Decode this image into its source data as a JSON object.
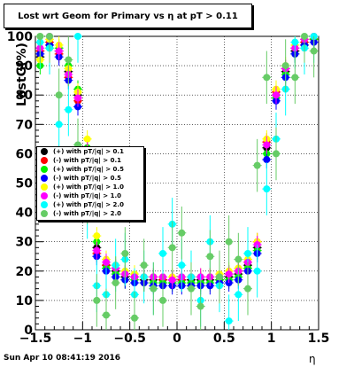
{
  "title": "Lost wrt Geom for Primary vs   η at pT > 0.11",
  "timestamp": "Sun Apr 10 08:41:19 2016",
  "chart_data": {
    "type": "scatter",
    "title": "Lost wrt Geom for Primary vs   η at pT > 0.11",
    "xlabel": "η",
    "ylabel": "LostG(%)",
    "xlim": [
      -1.5,
      1.5
    ],
    "ylim": [
      0,
      100
    ],
    "xticks": [
      -1.5,
      -1,
      -0.5,
      0,
      0.5,
      1,
      1.5
    ],
    "xtick_labels": [
      "−1.5",
      "−1",
      "−0.5",
      "0",
      "0.5",
      "1",
      "1.5"
    ],
    "yticks": [
      0,
      10,
      20,
      30,
      40,
      50,
      60,
      70,
      80,
      90,
      100
    ],
    "ytick_labels": [
      "0",
      "10",
      "20",
      "30",
      "40",
      "50",
      "60",
      "70",
      "80",
      "90",
      "100"
    ],
    "grid": true,
    "legend_position": "middle-left",
    "series": [
      {
        "name": "(+) with pT/|q| > 0.1",
        "color": "#000000",
        "x": [
          -1.45,
          -1.35,
          -1.25,
          -1.15,
          -1.05,
          -0.95,
          -0.85,
          -0.75,
          -0.65,
          -0.55,
          -0.45,
          -0.35,
          -0.25,
          -0.15,
          -0.05,
          0.05,
          0.15,
          0.25,
          0.35,
          0.45,
          0.55,
          0.65,
          0.75,
          0.85,
          0.95,
          1.05,
          1.15,
          1.25,
          1.35,
          1.45
        ],
        "y": [
          93,
          97,
          95,
          88,
          80,
          62,
          28,
          22,
          20,
          18,
          18,
          17,
          17,
          17,
          17,
          17,
          17,
          17,
          17,
          17,
          18,
          19,
          22,
          28,
          62,
          80,
          88,
          95,
          97,
          99
        ]
      },
      {
        "name": "(-) with pT/|q| > 0.1",
        "color": "#ff0000",
        "x": [
          -1.45,
          -1.35,
          -1.25,
          -1.15,
          -1.05,
          -0.95,
          -0.85,
          -0.75,
          -0.65,
          -0.55,
          -0.45,
          -0.35,
          -0.25,
          -0.15,
          -0.05,
          0.05,
          0.15,
          0.25,
          0.35,
          0.45,
          0.55,
          0.65,
          0.75,
          0.85,
          0.95,
          1.05,
          1.15,
          1.25,
          1.35,
          1.45
        ],
        "y": [
          95,
          98,
          94,
          86,
          78,
          60,
          26,
          22,
          21,
          19,
          18,
          18,
          18,
          17,
          17,
          17,
          18,
          18,
          18,
          18,
          19,
          20,
          23,
          30,
          64,
          81,
          89,
          96,
          98,
          99
        ]
      },
      {
        "name": "(+) with pT/|q| > 0.5",
        "color": "#00ee00",
        "x": [
          -1.45,
          -1.35,
          -1.25,
          -1.15,
          -1.05,
          -0.95,
          -0.85,
          -0.75,
          -0.65,
          -0.55,
          -0.45,
          -0.35,
          -0.25,
          -0.15,
          -0.05,
          0.05,
          0.15,
          0.25,
          0.35,
          0.45,
          0.55,
          0.65,
          0.75,
          0.85,
          0.95,
          1.05,
          1.15,
          1.25,
          1.35,
          1.45
        ],
        "y": [
          90,
          96,
          96,
          90,
          82,
          62,
          30,
          21,
          19,
          17,
          17,
          16,
          16,
          16,
          16,
          16,
          16,
          16,
          16,
          17,
          17,
          18,
          21,
          27,
          60,
          79,
          87,
          94,
          97,
          99
        ]
      },
      {
        "name": "(-) with pT/|q| > 0.5",
        "color": "#0000ff",
        "x": [
          -1.45,
          -1.35,
          -1.25,
          -1.15,
          -1.05,
          -0.95,
          -0.85,
          -0.75,
          -0.65,
          -0.55,
          -0.45,
          -0.35,
          -0.25,
          -0.15,
          -0.05,
          0.05,
          0.15,
          0.25,
          0.35,
          0.45,
          0.55,
          0.65,
          0.75,
          0.85,
          0.95,
          1.05,
          1.15,
          1.25,
          1.35,
          1.45
        ],
        "y": [
          94,
          97,
          93,
          85,
          76,
          58,
          25,
          20,
          18,
          17,
          16,
          16,
          15,
          15,
          15,
          15,
          15,
          15,
          15,
          16,
          16,
          17,
          20,
          26,
          58,
          78,
          86,
          94,
          97,
          98
        ]
      },
      {
        "name": "(+) with pT/|q| > 1.0",
        "color": "#ffff00",
        "x": [
          -1.45,
          -1.35,
          -1.25,
          -1.15,
          -1.05,
          -0.95,
          -0.85,
          -0.75,
          -0.65,
          -0.55,
          -0.45,
          -0.35,
          -0.25,
          -0.15,
          -0.05,
          0.05,
          0.15,
          0.25,
          0.35,
          0.45,
          0.55,
          0.65,
          0.75,
          0.85,
          0.95,
          1.05,
          1.15,
          1.25,
          1.35,
          1.45
        ],
        "y": [
          92,
          99,
          97,
          89,
          81,
          65,
          32,
          24,
          22,
          20,
          19,
          18,
          18,
          18,
          18,
          18,
          18,
          18,
          18,
          19,
          20,
          21,
          24,
          30,
          65,
          82,
          90,
          97,
          99,
          100
        ]
      },
      {
        "name": "(-) with pT/|q| > 1.0",
        "color": "#ff00ff",
        "x": [
          -1.45,
          -1.35,
          -1.25,
          -1.15,
          -1.05,
          -0.95,
          -0.85,
          -0.75,
          -0.65,
          -0.55,
          -0.45,
          -0.35,
          -0.25,
          -0.15,
          -0.05,
          0.05,
          0.15,
          0.25,
          0.35,
          0.45,
          0.55,
          0.65,
          0.75,
          0.85,
          0.95,
          1.05,
          1.15,
          1.25,
          1.35,
          1.45
        ],
        "y": [
          96,
          100,
          95,
          87,
          79,
          61,
          27,
          23,
          21,
          19,
          18,
          18,
          18,
          18,
          17,
          18,
          18,
          18,
          18,
          18,
          19,
          20,
          23,
          29,
          63,
          80,
          89,
          96,
          99,
          100
        ]
      },
      {
        "name": "(+) with pT/|q| > 2.0",
        "color": "#00ffff",
        "x": [
          -1.45,
          -1.35,
          -1.25,
          -1.15,
          -1.05,
          -0.95,
          -0.85,
          -0.75,
          -0.65,
          -0.55,
          -0.45,
          -0.35,
          -0.25,
          -0.15,
          -0.05,
          0.05,
          0.15,
          0.25,
          0.35,
          0.45,
          0.55,
          0.65,
          0.75,
          0.85,
          0.95,
          1.05,
          1.15,
          1.25,
          1.35,
          1.45
        ],
        "y": [
          98,
          96,
          70,
          75,
          100,
          40,
          15,
          12,
          22,
          24,
          12,
          18,
          14,
          26,
          36,
          22,
          18,
          10,
          30,
          15,
          3,
          12,
          26,
          20,
          48,
          65,
          82,
          98,
          96,
          100
        ]
      },
      {
        "name": "(-) with pT/|q| > 2.0",
        "color": "#66cc66",
        "x": [
          -1.45,
          -1.35,
          -1.25,
          -1.15,
          -1.05,
          -0.95,
          -0.85,
          -0.75,
          -0.65,
          -0.55,
          -0.45,
          -0.35,
          -0.25,
          -0.15,
          -0.05,
          0.05,
          0.15,
          0.25,
          0.35,
          0.45,
          0.55,
          0.65,
          0.75,
          0.85,
          0.95,
          1.05,
          1.15,
          1.25,
          1.35,
          1.45
        ],
        "y": [
          100,
          100,
          80,
          92,
          63,
          45,
          10,
          5,
          16,
          26,
          4,
          22,
          14,
          10,
          28,
          33,
          14,
          8,
          25,
          18,
          30,
          24,
          14,
          56,
          86,
          60,
          90,
          86,
          100,
          95
        ]
      }
    ]
  }
}
